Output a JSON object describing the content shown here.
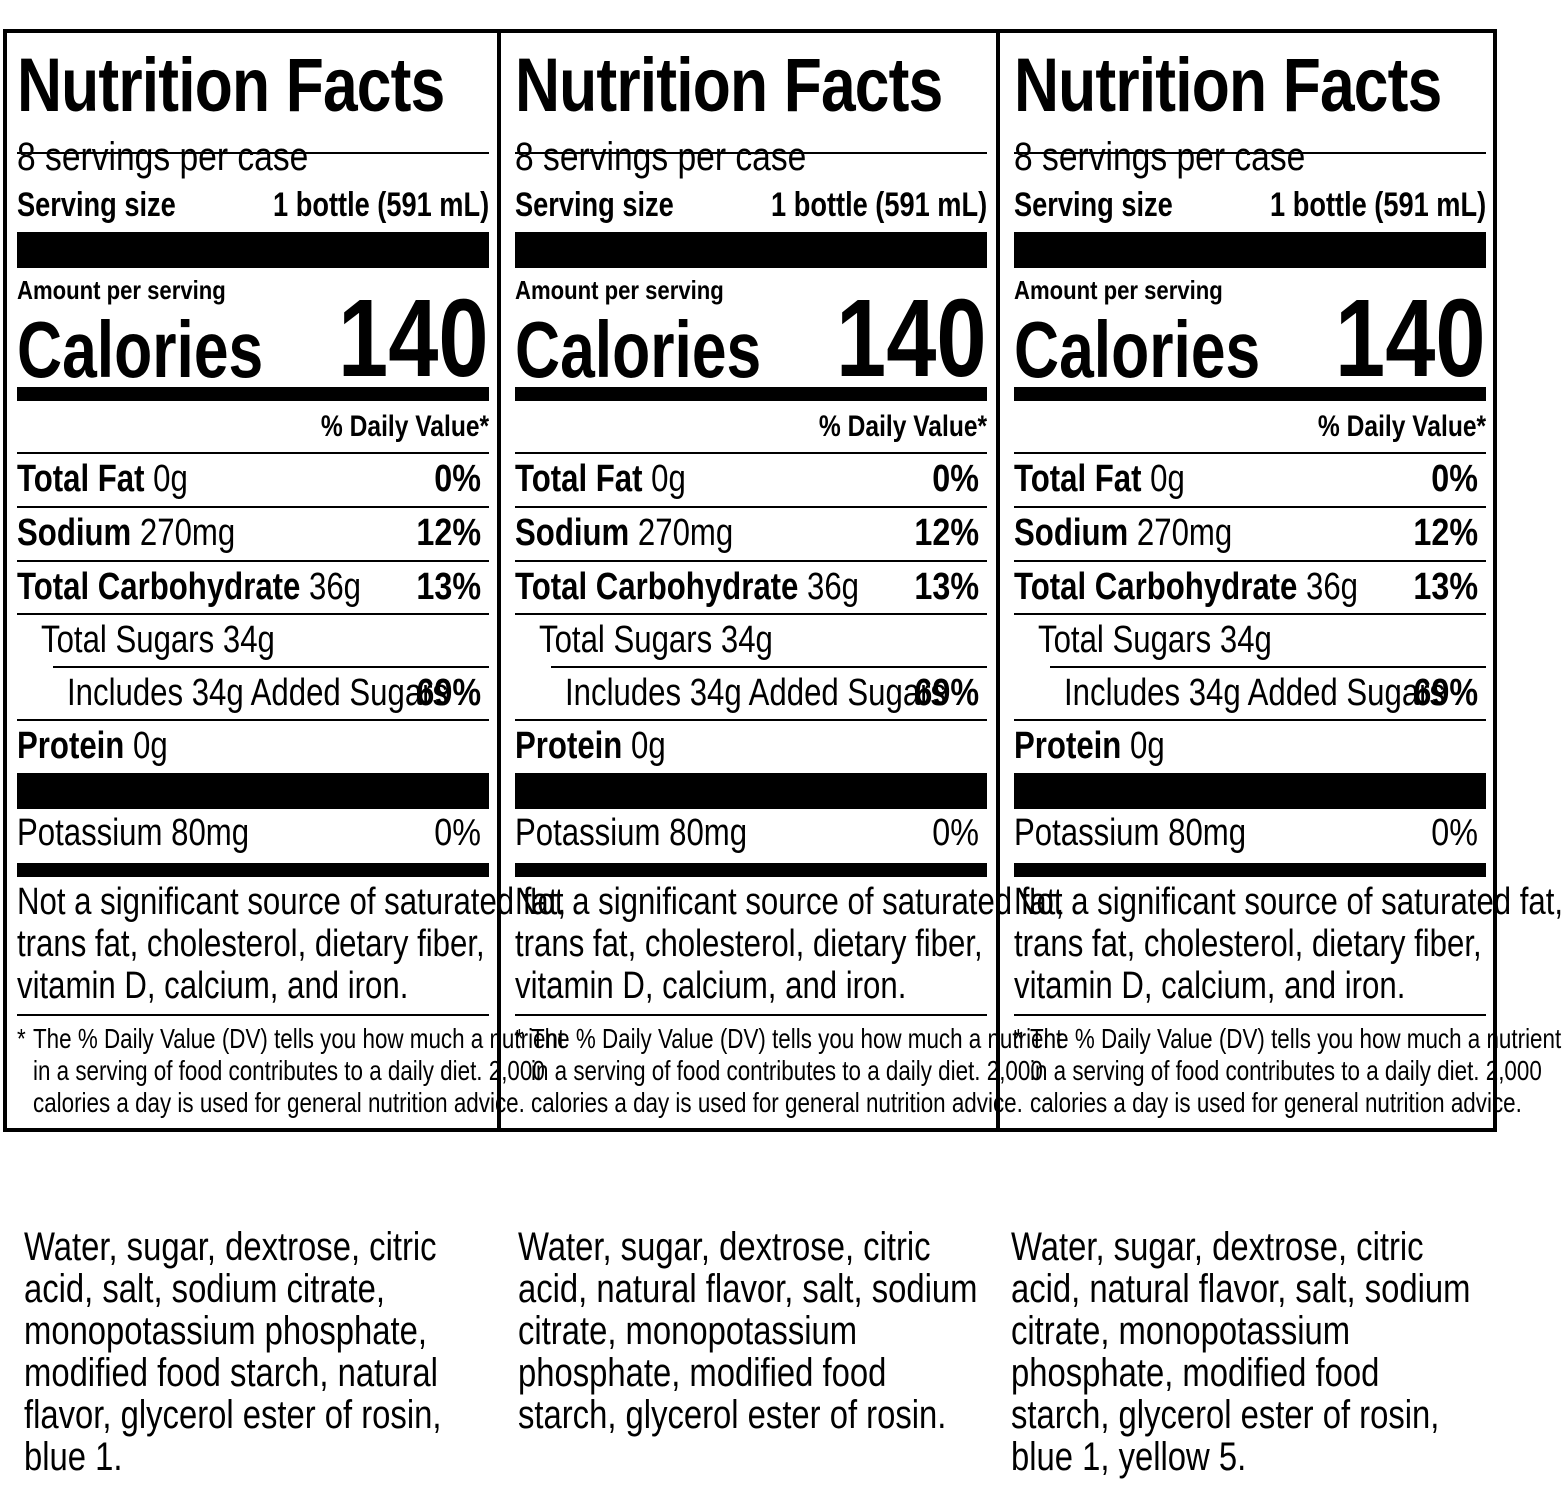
{
  "labels": [
    {
      "title": "Nutrition Facts",
      "servings_per_container": "8 servings per case",
      "serving_size_label": "Serving size",
      "serving_size_value": "1 bottle (591 mL)",
      "amount_per_serving": "Amount per serving",
      "calories_label": "Calories",
      "calories_value": "140",
      "daily_value_header": "% Daily Value*",
      "nutrients": {
        "total_fat": {
          "label": "Total Fat",
          "amount": "0g",
          "dv": "0%"
        },
        "sodium": {
          "label": "Sodium",
          "amount": "270mg",
          "dv": "12%"
        },
        "total_carbohydrate": {
          "label": "Total Carbohydrate",
          "amount": "36g",
          "dv": "13%"
        },
        "total_sugars": {
          "label": "Total Sugars 34g"
        },
        "added_sugars": {
          "label": "Includes 34g Added Sugars",
          "dv": "69%"
        },
        "protein": {
          "label": "Protein",
          "amount": "0g"
        },
        "potassium": {
          "label": "Potassium 80mg",
          "dv": "0%"
        }
      },
      "not_significant_lines": [
        "Not a significant source of saturated fat,",
        "trans fat, cholesterol, dietary fiber,",
        "vitamin D, calcium, and iron."
      ],
      "footnote_star": "*",
      "footnote_lines": [
        "The % Daily Value (DV) tells you how much a nutrient",
        "in a serving of food contributes to a daily diet. 2,000",
        "calories a day is used for general nutrition advice."
      ],
      "ingredients": "Water, sugar, dextrose, citric acid, salt, sodium citrate, monopotassium phosphate, modified food starch, natural flavor, glycerol ester of rosin, blue 1."
    },
    {
      "title": "Nutrition Facts",
      "servings_per_container": "8 servings per case",
      "serving_size_label": "Serving size",
      "serving_size_value": "1 bottle (591 mL)",
      "amount_per_serving": "Amount per serving",
      "calories_label": "Calories",
      "calories_value": "140",
      "daily_value_header": "% Daily Value*",
      "nutrients": {
        "total_fat": {
          "label": "Total Fat",
          "amount": "0g",
          "dv": "0%"
        },
        "sodium": {
          "label": "Sodium",
          "amount": "270mg",
          "dv": "12%"
        },
        "total_carbohydrate": {
          "label": "Total Carbohydrate",
          "amount": "36g",
          "dv": "13%"
        },
        "total_sugars": {
          "label": "Total Sugars 34g"
        },
        "added_sugars": {
          "label": "Includes 34g Added Sugars",
          "dv": "69%"
        },
        "protein": {
          "label": "Protein",
          "amount": "0g"
        },
        "potassium": {
          "label": "Potassium 80mg",
          "dv": "0%"
        }
      },
      "not_significant_lines": [
        "Not a significant source of saturated fat,",
        "trans fat, cholesterol, dietary fiber,",
        "vitamin D, calcium, and iron."
      ],
      "footnote_star": "*",
      "footnote_lines": [
        "The % Daily Value (DV) tells you how much a nutrient",
        "in a serving of food contributes to a daily diet. 2,000",
        "calories a day is used for general nutrition advice."
      ],
      "ingredients": "Water, sugar, dextrose, citric acid, natural flavor, salt, sodium citrate, monopotassium phosphate, modified food starch, glycerol ester of rosin."
    },
    {
      "title": "Nutrition Facts",
      "servings_per_container": "8 servings per case",
      "serving_size_label": "Serving size",
      "serving_size_value": "1 bottle (591 mL)",
      "amount_per_serving": "Amount per serving",
      "calories_label": "Calories",
      "calories_value": "140",
      "daily_value_header": "% Daily Value*",
      "nutrients": {
        "total_fat": {
          "label": "Total Fat",
          "amount": "0g",
          "dv": "0%"
        },
        "sodium": {
          "label": "Sodium",
          "amount": "270mg",
          "dv": "12%"
        },
        "total_carbohydrate": {
          "label": "Total Carbohydrate",
          "amount": "36g",
          "dv": "13%"
        },
        "total_sugars": {
          "label": "Total Sugars 34g"
        },
        "added_sugars": {
          "label": "Includes 34g Added Sugars",
          "dv": "69%"
        },
        "protein": {
          "label": "Protein",
          "amount": "0g"
        },
        "potassium": {
          "label": "Potassium 80mg",
          "dv": "0%"
        }
      },
      "not_significant_lines": [
        "Not a significant source of saturated fat,",
        "trans fat, cholesterol, dietary fiber,",
        "vitamin D, calcium, and iron."
      ],
      "footnote_star": "*",
      "footnote_lines": [
        "The % Daily Value (DV) tells you how much a nutrient",
        "in a serving of food contributes to a daily diet. 2,000",
        "calories a day is used for general nutrition advice."
      ],
      "ingredients": "Water, sugar, dextrose, citric acid, natural flavor, salt, sodium citrate, monopotassium phosphate, modified food starch, glycerol ester of rosin, blue 1, yellow 5."
    }
  ]
}
